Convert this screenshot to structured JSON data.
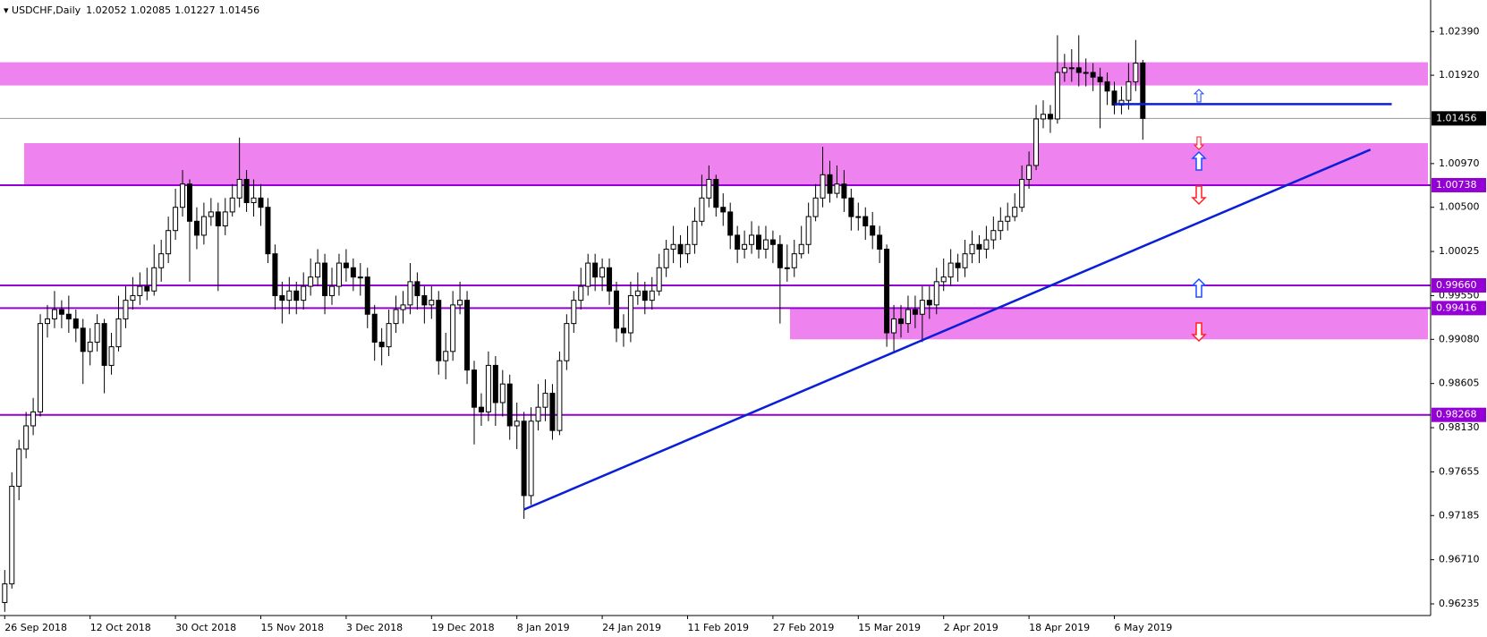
{
  "chart_data": {
    "type": "candlestick",
    "symbol": "USDCHF,Daily",
    "categories": [
      "26 Sep 2018",
      null,
      null,
      null,
      null,
      null,
      null,
      null,
      null,
      null,
      null,
      null,
      "12 Oct 2018",
      null,
      null,
      null,
      null,
      null,
      null,
      null,
      null,
      null,
      null,
      null,
      "30 Oct 2018",
      null,
      null,
      null,
      null,
      null,
      null,
      null,
      null,
      null,
      null,
      null,
      "15 Nov 2018",
      null,
      null,
      null,
      null,
      null,
      null,
      null,
      null,
      null,
      null,
      null,
      "3 Dec 2018",
      null,
      null,
      null,
      null,
      null,
      null,
      null,
      null,
      null,
      null,
      null,
      "19 Dec 2018",
      null,
      null,
      null,
      null,
      null,
      null,
      null,
      null,
      null,
      null,
      null,
      "8 Jan 2019",
      null,
      null,
      null,
      null,
      null,
      null,
      null,
      null,
      null,
      null,
      null,
      "24 Jan 2019",
      null,
      null,
      null,
      null,
      null,
      null,
      null,
      null,
      null,
      null,
      null,
      "11 Feb 2019",
      null,
      null,
      null,
      null,
      null,
      null,
      null,
      null,
      null,
      null,
      null,
      "27 Feb 2019",
      null,
      null,
      null,
      null,
      null,
      null,
      null,
      null,
      null,
      null,
      null,
      "15 Mar 2019",
      null,
      null,
      null,
      null,
      null,
      null,
      null,
      null,
      null,
      null,
      null,
      "2 Apr 2019",
      null,
      null,
      null,
      null,
      null,
      null,
      null,
      null,
      null,
      null,
      null,
      "18 Apr 2019",
      null,
      null,
      null,
      null,
      null,
      null,
      null,
      null,
      null,
      null,
      null,
      "6 May 2019",
      null,
      null,
      null,
      null
    ],
    "open": [
      0.9625,
      0.9645,
      0.975,
      0.979,
      0.9815,
      0.983,
      0.9925,
      0.993,
      0.994,
      0.9935,
      0.993,
      0.992,
      0.9895,
      0.9905,
      0.9925,
      0.988,
      0.99,
      0.993,
      0.995,
      0.9955,
      0.9965,
      0.996,
      0.9985,
      1.0,
      1.0025,
      1.005,
      1.0075,
      1.0035,
      1.002,
      1.004,
      1.0045,
      1.003,
      1.0045,
      1.006,
      1.008,
      1.0055,
      1.006,
      1.005,
      1.0,
      0.9955,
      0.995,
      0.996,
      0.995,
      0.9965,
      0.9975,
      0.999,
      0.9955,
      0.9965,
      0.999,
      0.9985,
      0.9975,
      0.9975,
      0.9935,
      0.9905,
      0.99,
      0.9925,
      0.994,
      0.9945,
      0.997,
      0.9955,
      0.9945,
      0.995,
      0.9885,
      0.9895,
      0.9945,
      0.995,
      0.9875,
      0.9835,
      0.983,
      0.988,
      0.984,
      0.986,
      0.9815,
      0.982,
      0.974,
      0.982,
      0.9835,
      0.985,
      0.981,
      0.9885,
      0.9925,
      0.995,
      0.9965,
      0.999,
      0.9975,
      0.9985,
      0.996,
      0.992,
      0.9915,
      0.9955,
      0.996,
      0.995,
      0.996,
      0.9985,
      1.0005,
      1.001,
      1.0,
      1.001,
      1.0035,
      1.006,
      1.008,
      1.005,
      1.0045,
      1.002,
      1.0005,
      1.001,
      1.002,
      1.0005,
      1.0015,
      1.001,
      0.9985,
      0.9985,
      1.0,
      1.001,
      1.004,
      1.006,
      1.0085,
      1.0065,
      1.0075,
      1.006,
      1.004,
      1.004,
      1.003,
      1.002,
      1.0005,
      0.9915,
      0.993,
      0.9925,
      0.994,
      0.9935,
      0.995,
      0.9945,
      0.997,
      0.9975,
      0.999,
      0.9985,
      1.0,
      1.001,
      1.0005,
      1.0015,
      1.0025,
      1.0035,
      1.004,
      1.005,
      1.008,
      1.0095,
      1.0145,
      1.015,
      1.0145,
      1.0195,
      1.02,
      1.02,
      1.0195,
      1.0195,
      1.019,
      1.0185,
      1.0175,
      1.016,
      1.0165,
      1.0185,
      1.02052
    ],
    "high": [
      0.966,
      0.9765,
      0.98,
      0.983,
      0.9845,
      0.9935,
      0.9945,
      0.996,
      0.995,
      0.9955,
      0.994,
      0.993,
      0.992,
      0.9935,
      0.993,
      0.9915,
      0.9955,
      0.9965,
      0.9975,
      0.998,
      0.9985,
      1.001,
      1.0015,
      1.004,
      1.007,
      1.009,
      1.008,
      1.005,
      1.0055,
      1.006,
      1.0055,
      1.006,
      1.0075,
      1.0125,
      1.009,
      1.008,
      1.0075,
      1.006,
      1.001,
      0.997,
      0.9975,
      0.997,
      0.998,
      0.9995,
      1.0005,
      1.0,
      0.9985,
      1.0,
      1.0005,
      0.9995,
      0.999,
      0.9985,
      0.9945,
      0.992,
      0.994,
      0.9955,
      0.996,
      0.999,
      0.998,
      0.9965,
      0.9965,
      0.996,
      0.9915,
      0.996,
      0.997,
      0.996,
      0.9885,
      0.985,
      0.9895,
      0.989,
      0.9875,
      0.987,
      0.984,
      0.983,
      0.9835,
      0.986,
      0.9865,
      0.986,
      0.9895,
      0.9935,
      0.996,
      0.9985,
      1.0,
      1.0,
      0.9995,
      0.9995,
      0.997,
      0.9935,
      0.997,
      0.998,
      0.997,
      0.9975,
      1.0,
      1.0015,
      1.003,
      1.002,
      1.003,
      1.005,
      1.0085,
      1.0095,
      1.0085,
      1.0065,
      1.0055,
      1.003,
      1.0025,
      1.0035,
      1.003,
      1.003,
      1.0025,
      1.002,
      1.001,
      1.0015,
      1.003,
      1.0055,
      1.0075,
      1.0115,
      1.01,
      1.0095,
      1.009,
      1.007,
      1.0055,
      1.005,
      1.0045,
      1.003,
      1.001,
      0.9945,
      0.9945,
      0.9955,
      0.9955,
      0.9965,
      0.9965,
      0.9985,
      0.9995,
      1.0005,
      1.0,
      1.0015,
      1.0025,
      1.002,
      1.003,
      1.004,
      1.005,
      1.0055,
      1.0065,
      1.0095,
      1.011,
      1.016,
      1.0165,
      1.016,
      1.0235,
      1.0215,
      1.022,
      1.0235,
      1.021,
      1.0205,
      1.02,
      1.0195,
      1.0185,
      1.018,
      1.0205,
      1.023,
      1.02085
    ],
    "low": [
      0.9615,
      0.964,
      0.9735,
      0.978,
      0.9805,
      0.9825,
      0.991,
      0.992,
      0.992,
      0.9915,
      0.9905,
      0.986,
      0.988,
      0.9895,
      0.985,
      0.987,
      0.9895,
      0.992,
      0.994,
      0.9945,
      0.995,
      0.9955,
      0.997,
      0.999,
      1.0015,
      1.004,
      0.997,
      1.0005,
      1.001,
      1.003,
      0.996,
      1.002,
      1.004,
      1.005,
      1.0045,
      1.004,
      1.003,
      0.999,
      0.994,
      0.9925,
      0.9935,
      0.9935,
      0.994,
      0.9955,
      0.9965,
      0.9935,
      0.9945,
      0.9955,
      0.997,
      0.996,
      0.9955,
      0.992,
      0.9885,
      0.988,
      0.989,
      0.9915,
      0.9925,
      0.9935,
      0.994,
      0.9925,
      0.993,
      0.987,
      0.9865,
      0.9885,
      0.9935,
      0.986,
      0.9795,
      0.9815,
      0.982,
      0.9815,
      0.9825,
      0.98,
      0.979,
      0.9715,
      0.973,
      0.981,
      0.982,
      0.98,
      0.9805,
      0.9875,
      0.9915,
      0.994,
      0.9955,
      0.996,
      0.996,
      0.9945,
      0.9905,
      0.99,
      0.9905,
      0.9945,
      0.9935,
      0.994,
      0.9955,
      0.9975,
      0.999,
      0.9985,
      0.999,
      1.0,
      1.003,
      1.005,
      1.004,
      1.003,
      1.0005,
      0.999,
      0.9995,
      1.0,
      0.9995,
      0.9995,
      0.999,
      0.9925,
      0.997,
      0.9975,
      0.9995,
      1.0,
      1.0035,
      1.005,
      1.0055,
      1.006,
      1.0045,
      1.0025,
      1.0025,
      1.0015,
      1.0005,
      0.999,
      0.99,
      0.9895,
      0.991,
      0.9915,
      0.992,
      0.9905,
      0.993,
      0.9935,
      0.996,
      0.9965,
      0.997,
      0.9975,
      0.999,
      0.999,
      0.9995,
      1.0005,
      1.0015,
      1.0025,
      1.0035,
      1.0045,
      1.007,
      1.009,
      1.0135,
      1.013,
      1.014,
      1.0185,
      1.0185,
      1.018,
      1.018,
      1.0175,
      1.0135,
      1.016,
      1.015,
      1.015,
      1.0155,
      1.0175,
      1.01227
    ],
    "close": [
      0.9645,
      0.975,
      0.979,
      0.9815,
      0.983,
      0.9925,
      0.993,
      0.994,
      0.9935,
      0.993,
      0.992,
      0.9895,
      0.9905,
      0.9925,
      0.988,
      0.99,
      0.993,
      0.995,
      0.9955,
      0.9965,
      0.996,
      0.9985,
      1.0,
      1.0025,
      1.005,
      1.0075,
      1.0035,
      1.002,
      1.004,
      1.0045,
      1.003,
      1.0045,
      1.006,
      1.008,
      1.0055,
      1.006,
      1.005,
      1.0,
      0.9955,
      0.995,
      0.996,
      0.995,
      0.9965,
      0.9975,
      0.999,
      0.9955,
      0.9965,
      0.999,
      0.9985,
      0.9975,
      0.9975,
      0.9935,
      0.9905,
      0.99,
      0.9925,
      0.994,
      0.9945,
      0.997,
      0.9955,
      0.9945,
      0.995,
      0.9885,
      0.9895,
      0.9945,
      0.995,
      0.9875,
      0.9835,
      0.983,
      0.988,
      0.984,
      0.986,
      0.9815,
      0.982,
      0.974,
      0.982,
      0.9835,
      0.985,
      0.981,
      0.9885,
      0.9925,
      0.995,
      0.9965,
      0.999,
      0.9975,
      0.9985,
      0.996,
      0.992,
      0.9915,
      0.9955,
      0.996,
      0.995,
      0.996,
      0.9985,
      1.0005,
      1.001,
      1.0,
      1.001,
      1.0035,
      1.006,
      1.008,
      1.005,
      1.0045,
      1.002,
      1.0005,
      1.001,
      1.002,
      1.0005,
      1.0015,
      1.001,
      0.9985,
      0.9985,
      1.0,
      1.001,
      1.004,
      1.006,
      1.0085,
      1.0065,
      1.0075,
      1.006,
      1.004,
      1.004,
      1.003,
      1.002,
      1.0005,
      0.9915,
      0.993,
      0.9925,
      0.994,
      0.9935,
      0.995,
      0.9945,
      0.997,
      0.9975,
      0.999,
      0.9985,
      1.0,
      1.001,
      1.0005,
      1.0015,
      1.0025,
      1.0035,
      1.004,
      1.005,
      1.008,
      1.0095,
      1.0145,
      1.015,
      1.0145,
      1.0195,
      1.02,
      1.02,
      1.0195,
      1.0195,
      1.019,
      1.0185,
      1.0175,
      1.016,
      1.0165,
      1.0185,
      1.0205,
      1.01456
    ],
    "ylim": [
      0.9611,
      1.0271
    ],
    "yticks": [
      {
        "value": 1.0239,
        "label": "1.02390"
      },
      {
        "value": 1.0192,
        "label": "1.01920"
      },
      {
        "value": 1.0097,
        "label": "1.00970"
      },
      {
        "value": 1.005,
        "label": "1.00500"
      },
      {
        "value": 1.00025,
        "label": "1.00025"
      },
      {
        "value": 0.9955,
        "label": "0.99550"
      },
      {
        "value": 0.9908,
        "label": "0.99080"
      },
      0.98605,
      {
        "value": 0.9813,
        "label": "0.98130"
      },
      0.97655,
      0.97185,
      {
        "value": 0.9671,
        "label": "0.96710"
      },
      0.96235
    ],
    "levels": [
      1.00738,
      {
        "value": 0.9966,
        "label": "0.99660"
      },
      0.99416,
      0.98268
    ],
    "zones": [
      [
        1.0181,
        1.0206
      ],
      [
        1.0074,
        1.0119
      ],
      [
        0.9908,
        0.99416
      ]
    ],
    "trendline": {
      "x": [
        73,
        192
      ],
      "y": [
        0.9725,
        1.0112
      ]
    },
    "hline": {
      "x": [
        156,
        195
      ],
      "y": [
        1.0161,
        1.0161
      ]
    }
  }
}
